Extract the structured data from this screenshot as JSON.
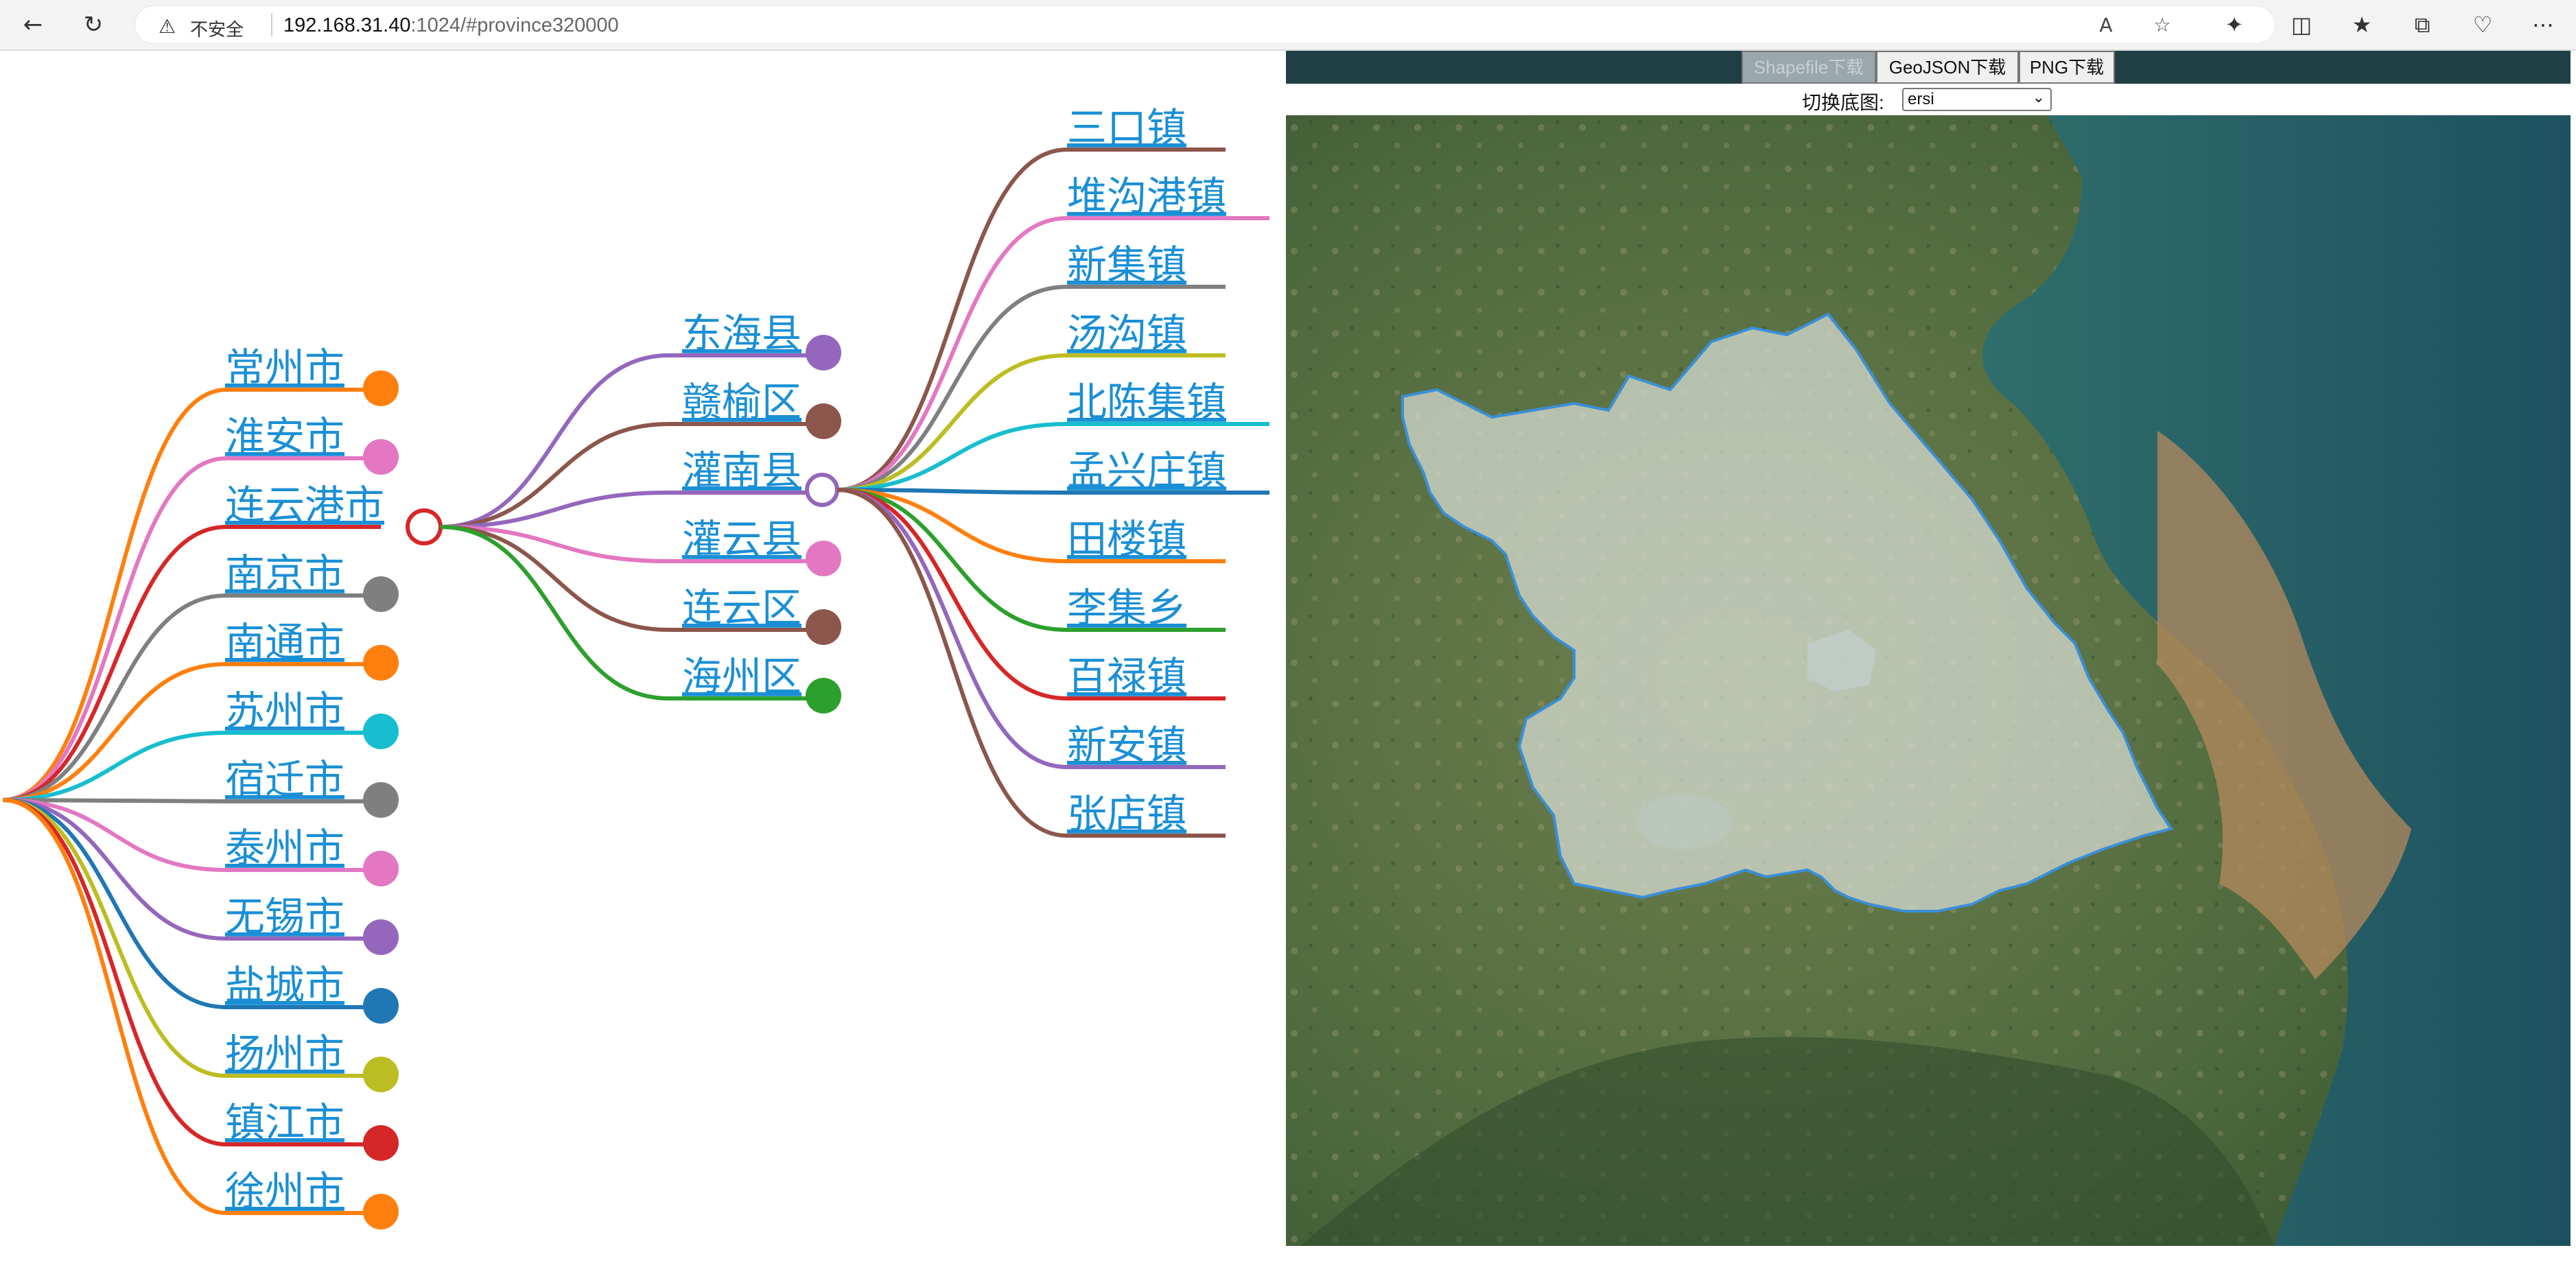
{
  "browser": {
    "security_label": "不安全",
    "url_host": "192.168.31.40",
    "url_rest": ":1024/#province320000",
    "icons": [
      "back-icon",
      "reload-icon",
      "warning-icon",
      "read-aloud-icon",
      "favorite-icon",
      "extensions-icon",
      "split-screen-icon",
      "favorites-icon",
      "collections-icon",
      "browser-essentials-icon",
      "more-icon"
    ]
  },
  "tree": {
    "cities": [
      {
        "label": "常州市",
        "color": "#ff7f0e"
      },
      {
        "label": "淮安市",
        "color": "#e377c2"
      },
      {
        "label": "连云港市",
        "color": "#d62728"
      },
      {
        "label": "南京市",
        "color": "#7f7f7f"
      },
      {
        "label": "南通市",
        "color": "#ff7f0e"
      },
      {
        "label": "苏州市",
        "color": "#17becf"
      },
      {
        "label": "宿迁市",
        "color": "#7f7f7f"
      },
      {
        "label": "泰州市",
        "color": "#e377c2"
      },
      {
        "label": "无锡市",
        "color": "#9467bd"
      },
      {
        "label": "盐城市",
        "color": "#1f77b4"
      },
      {
        "label": "扬州市",
        "color": "#bcbd22"
      },
      {
        "label": "镇江市",
        "color": "#d62728"
      },
      {
        "label": "徐州市",
        "color": "#ff7f0e"
      }
    ],
    "districts": [
      {
        "label": "东海县",
        "color": "#9467bd"
      },
      {
        "label": "赣榆区",
        "color": "#8c564b"
      },
      {
        "label": "灌南县",
        "color": "#9467bd"
      },
      {
        "label": "灌云县",
        "color": "#e377c2"
      },
      {
        "label": "连云区",
        "color": "#8c564b"
      },
      {
        "label": "海州区",
        "color": "#2ca02c"
      }
    ],
    "towns": [
      {
        "label": "三口镇",
        "color": "#8c564b"
      },
      {
        "label": "堆沟港镇",
        "color": "#e377c2"
      },
      {
        "label": "新集镇",
        "color": "#7f7f7f"
      },
      {
        "label": "汤沟镇",
        "color": "#bcbd22"
      },
      {
        "label": "北陈集镇",
        "color": "#17becf"
      },
      {
        "label": "孟兴庄镇",
        "color": "#1f77b4"
      },
      {
        "label": "田楼镇",
        "color": "#ff7f0e"
      },
      {
        "label": "李集乡",
        "color": "#2ca02c"
      },
      {
        "label": "百禄镇",
        "color": "#d62728"
      },
      {
        "label": "新安镇",
        "color": "#9467bd"
      },
      {
        "label": "张店镇",
        "color": "#8c564b"
      }
    ]
  },
  "map": {
    "buttons": {
      "shapefile": "Shapefile下载",
      "geojson": "GeoJSON下载",
      "png": "PNG下载"
    },
    "basemap_label": "切换底图:",
    "basemap_value": "ersi"
  }
}
